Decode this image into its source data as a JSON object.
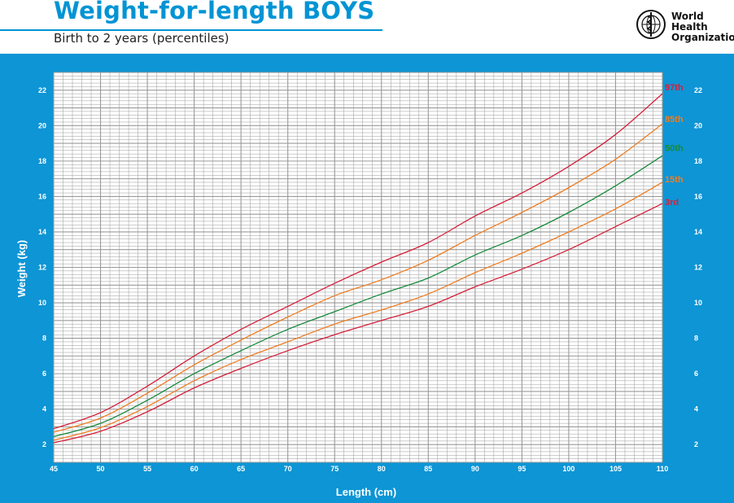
{
  "header": {
    "title": "Weight-for-length BOYS",
    "subtitle": "Birth to 2 years (percentiles)",
    "org_name_line1": "World Health",
    "org_name_line2": "Organization"
  },
  "colors": {
    "panel": "#0d95d5",
    "grid": "#9a9a9a",
    "p97": "#d6203a",
    "p85": "#ef7d22",
    "p50": "#178a3c",
    "p15": "#ef7d22",
    "p3": "#d6203a"
  },
  "chart_data": {
    "type": "line",
    "title": "Weight-for-length BOYS",
    "xlabel": "Length (cm)",
    "ylabel": "Weight (kg)",
    "xlim": [
      45,
      110
    ],
    "ylim": [
      1,
      23
    ],
    "x_ticks": [
      45,
      50,
      55,
      60,
      65,
      70,
      75,
      80,
      85,
      90,
      95,
      100,
      105,
      110
    ],
    "y_ticks": [
      2,
      4,
      6,
      8,
      10,
      12,
      14,
      16,
      18,
      20,
      22
    ],
    "grid": true,
    "x": [
      45,
      50,
      55,
      60,
      65,
      70,
      75,
      80,
      85,
      90,
      95,
      100,
      105,
      110
    ],
    "series": [
      {
        "name": "97th",
        "label": "97th",
        "values": [
          2.9,
          3.8,
          5.3,
          7.0,
          8.5,
          9.8,
          11.1,
          12.3,
          13.4,
          14.9,
          16.2,
          17.7,
          19.5,
          21.8
        ]
      },
      {
        "name": "85th",
        "label": "85th",
        "values": [
          2.7,
          3.5,
          4.9,
          6.5,
          7.9,
          9.2,
          10.4,
          11.3,
          12.4,
          13.8,
          15.1,
          16.5,
          18.1,
          20.1
        ]
      },
      {
        "name": "50th",
        "label": "50th",
        "values": [
          2.45,
          3.2,
          4.5,
          6.0,
          7.3,
          8.5,
          9.5,
          10.5,
          11.4,
          12.7,
          13.8,
          15.1,
          16.6,
          18.3
        ]
      },
      {
        "name": "15th",
        "label": "15th",
        "values": [
          2.25,
          2.95,
          4.15,
          5.6,
          6.8,
          7.8,
          8.8,
          9.6,
          10.5,
          11.7,
          12.8,
          14.0,
          15.3,
          16.8
        ]
      },
      {
        "name": "3rd",
        "label": "3rd",
        "values": [
          2.1,
          2.75,
          3.85,
          5.2,
          6.3,
          7.3,
          8.2,
          9.0,
          9.8,
          10.9,
          11.9,
          13.0,
          14.3,
          15.6
        ]
      }
    ]
  }
}
